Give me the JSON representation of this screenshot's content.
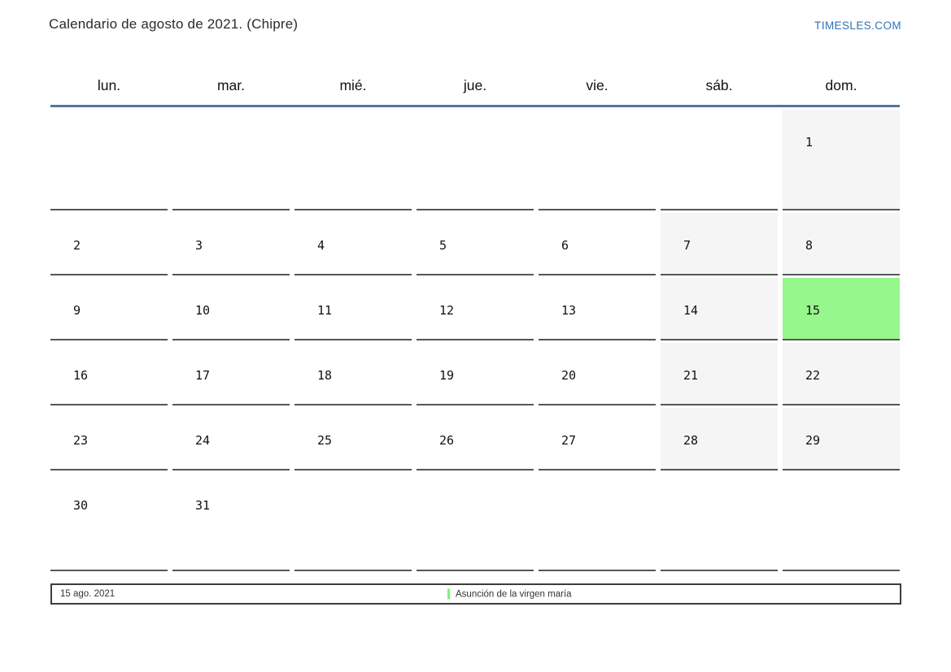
{
  "page": {
    "title": "Calendario de agosto de 2021. (Chipre)",
    "brand": "TIMESLES.COM"
  },
  "calendar": {
    "weekdays": [
      "lun.",
      "mar.",
      "mié.",
      "jue.",
      "vie.",
      "sáb.",
      "dom."
    ],
    "weeks": [
      [
        "",
        "",
        "",
        "",
        "",
        "",
        "1"
      ],
      [
        "2",
        "3",
        "4",
        "5",
        "6",
        "7",
        "8"
      ],
      [
        "9",
        "10",
        "11",
        "12",
        "13",
        "14",
        "15"
      ],
      [
        "16",
        "17",
        "18",
        "19",
        "20",
        "21",
        "22"
      ],
      [
        "23",
        "24",
        "25",
        "26",
        "27",
        "28",
        "29"
      ],
      [
        "30",
        "31",
        "",
        "",
        "",
        "",
        ""
      ]
    ],
    "highlighted_day": "15",
    "weekend_columns": [
      5,
      6
    ]
  },
  "legend": {
    "date": "15 ago. 2021",
    "event": "Asunción de la virgen maría"
  },
  "colors": {
    "accent_blue": "#2e74b5",
    "header_line": "#52749c",
    "weekend_bg": "#f5f5f5",
    "highlight_green": "#96f78c",
    "cell_border": "#565656",
    "legend_marker_green": "#7df47a"
  }
}
